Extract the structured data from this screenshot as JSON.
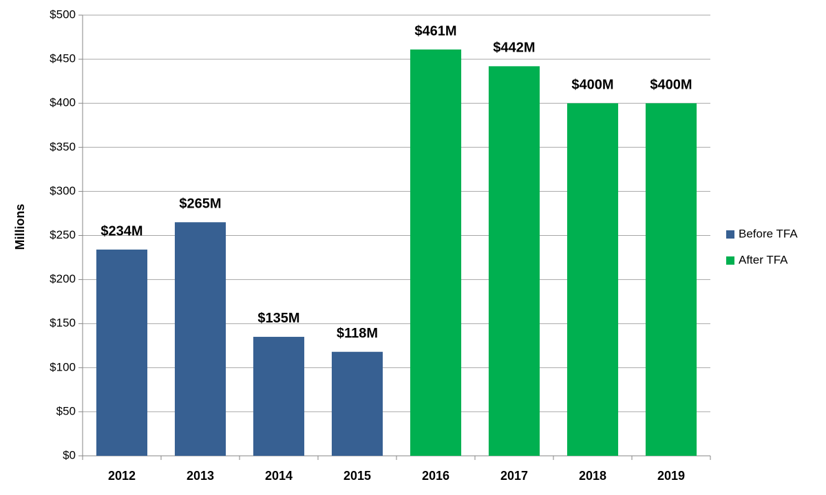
{
  "chart_data": {
    "type": "bar",
    "y_label": "Millions",
    "categories": [
      "2012",
      "2013",
      "2014",
      "2015",
      "2016",
      "2017",
      "2018",
      "2019"
    ],
    "series": [
      {
        "name": "Before TFA",
        "color": "#376092",
        "values": [
          234,
          265,
          135,
          118,
          null,
          null,
          null,
          null
        ],
        "value_labels": [
          "$234M",
          "$265M",
          "$135M",
          "$118M",
          null,
          null,
          null,
          null
        ]
      },
      {
        "name": "After TFA",
        "color": "#00b050",
        "values": [
          null,
          null,
          null,
          null,
          461,
          442,
          400,
          400
        ],
        "value_labels": [
          null,
          null,
          null,
          null,
          "$461M",
          "$442M",
          "$400M",
          "$400M"
        ]
      }
    ],
    "ylim": [
      0,
      500
    ],
    "yticks": [
      {
        "value": 0,
        "label": "$0"
      },
      {
        "value": 50,
        "label": "$50"
      },
      {
        "value": 100,
        "label": "$100"
      },
      {
        "value": 150,
        "label": "$150"
      },
      {
        "value": 200,
        "label": "$200"
      },
      {
        "value": 250,
        "label": "$250"
      },
      {
        "value": 300,
        "label": "$300"
      },
      {
        "value": 350,
        "label": "$350"
      },
      {
        "value": 400,
        "label": "$400"
      },
      {
        "value": 450,
        "label": "$450"
      },
      {
        "value": 500,
        "label": "$500"
      }
    ],
    "grid": true,
    "legend": "right"
  }
}
